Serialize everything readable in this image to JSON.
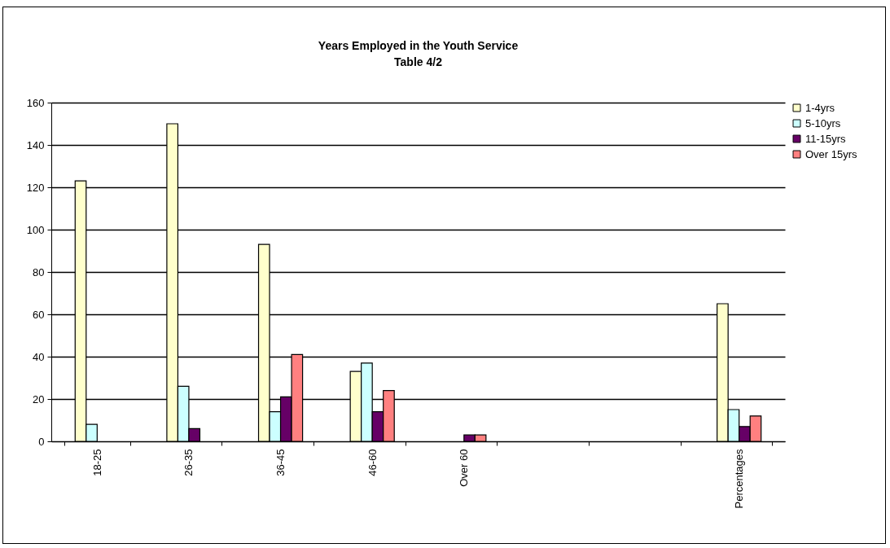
{
  "chart_data": {
    "type": "bar",
    "title": "Years Employed in the Youth Service",
    "subtitle": "Table 4/2",
    "categories": [
      "18-25",
      "26-35",
      "36-45",
      "46-60",
      "Over 60",
      null,
      null,
      "Percentages"
    ],
    "series": [
      {
        "name": "1-4yrs",
        "color": "#ffffcc",
        "values": [
          123,
          150,
          93,
          33,
          null,
          null,
          null,
          65
        ]
      },
      {
        "name": "5-10yrs",
        "color": "#ccffff",
        "values": [
          8,
          26,
          14,
          37,
          null,
          null,
          null,
          15
        ]
      },
      {
        "name": "11-15yrs",
        "color": "#660066",
        "values": [
          null,
          6,
          21,
          14,
          3,
          null,
          null,
          7
        ]
      },
      {
        "name": "Over 15yrs",
        "color": "#ff8080",
        "values": [
          null,
          null,
          41,
          24,
          3,
          null,
          null,
          12
        ]
      }
    ],
    "ylim": [
      0,
      160
    ],
    "yticks": [
      0,
      20,
      40,
      60,
      80,
      100,
      120,
      140,
      160
    ],
    "grid": "y",
    "legend": "right"
  }
}
